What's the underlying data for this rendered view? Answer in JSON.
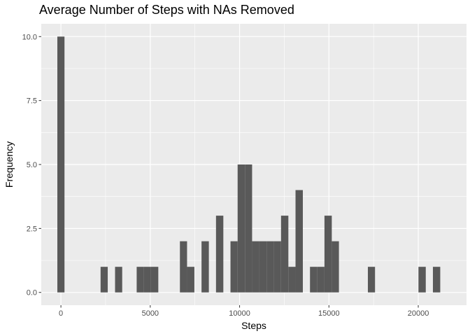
{
  "chart_data": {
    "type": "bar",
    "title": "Average Number of Steps with NAs Removed",
    "xlabel": "Steps",
    "ylabel": "Frequency",
    "xlim": [
      -1100,
      22700
    ],
    "ylim": [
      -0.5,
      10.5
    ],
    "x_ticks": [
      0,
      5000,
      10000,
      15000,
      20000
    ],
    "x_tick_labels": [
      "0",
      "5000",
      "10000",
      "15000",
      "20000"
    ],
    "y_ticks": [
      0,
      2.5,
      5,
      7.5,
      10
    ],
    "y_tick_labels": [
      "0.0",
      "2.5",
      "5.0",
      "7.5",
      "10.0"
    ],
    "bin_width": 405,
    "bins": [
      {
        "x0": -200,
        "x1": 200,
        "count": 10
      },
      {
        "x0": 2220,
        "x1": 2620,
        "count": 1
      },
      {
        "x0": 3030,
        "x1": 3430,
        "count": 1
      },
      {
        "x0": 4240,
        "x1": 4640,
        "count": 1
      },
      {
        "x0": 4640,
        "x1": 5040,
        "count": 1
      },
      {
        "x0": 5040,
        "x1": 5450,
        "count": 1
      },
      {
        "x0": 6660,
        "x1": 7060,
        "count": 2
      },
      {
        "x0": 7060,
        "x1": 7470,
        "count": 1
      },
      {
        "x0": 7870,
        "x1": 8280,
        "count": 2
      },
      {
        "x0": 8680,
        "x1": 9090,
        "count": 3
      },
      {
        "x0": 9490,
        "x1": 9890,
        "count": 2
      },
      {
        "x0": 9890,
        "x1": 10300,
        "count": 5
      },
      {
        "x0": 10300,
        "x1": 10700,
        "count": 5
      },
      {
        "x0": 10700,
        "x1": 11110,
        "count": 2
      },
      {
        "x0": 11110,
        "x1": 11510,
        "count": 2
      },
      {
        "x0": 11510,
        "x1": 11920,
        "count": 2
      },
      {
        "x0": 11920,
        "x1": 12320,
        "count": 2
      },
      {
        "x0": 12320,
        "x1": 12730,
        "count": 3
      },
      {
        "x0": 12730,
        "x1": 13130,
        "count": 1
      },
      {
        "x0": 13130,
        "x1": 13540,
        "count": 4
      },
      {
        "x0": 13940,
        "x1": 14350,
        "count": 1
      },
      {
        "x0": 14350,
        "x1": 14750,
        "count": 1
      },
      {
        "x0": 14750,
        "x1": 15160,
        "count": 3
      },
      {
        "x0": 15160,
        "x1": 15560,
        "count": 2
      },
      {
        "x0": 17180,
        "x1": 17580,
        "count": 1
      },
      {
        "x0": 20010,
        "x1": 20420,
        "count": 1
      },
      {
        "x0": 20820,
        "x1": 21230,
        "count": 1
      }
    ],
    "grid": true,
    "colors": {
      "panel_background": "#ebebeb",
      "grid_major": "#ffffff",
      "bar_fill": "#595959",
      "tick_text": "#4d4d4d"
    }
  }
}
